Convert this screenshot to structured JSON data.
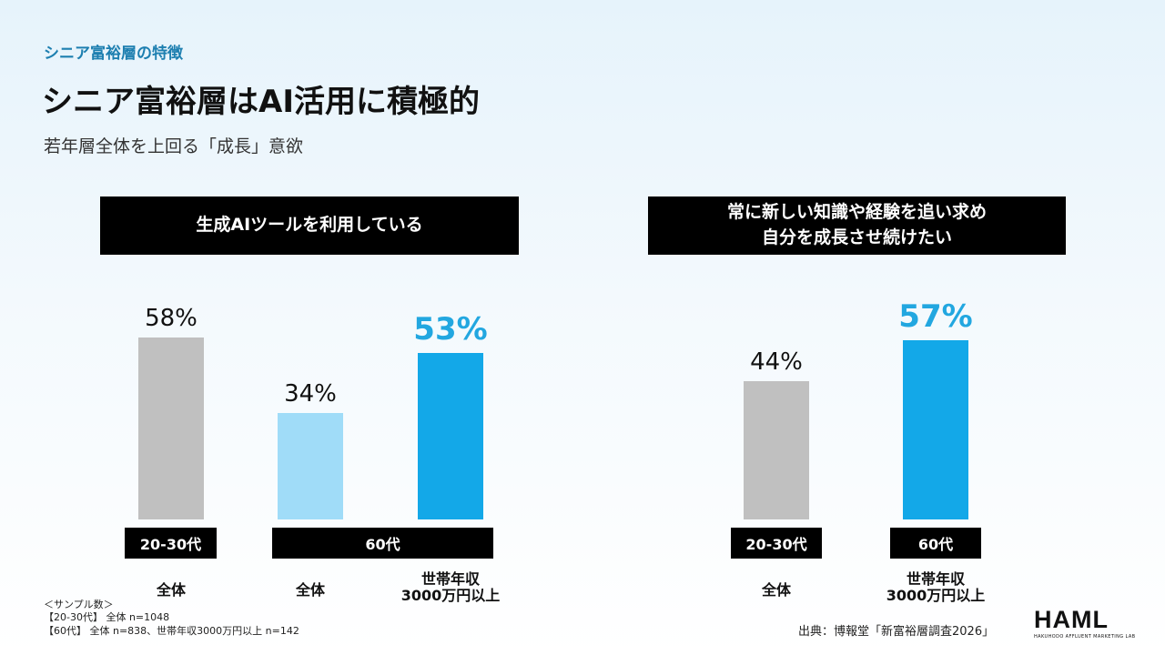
{
  "header": {
    "section_label": "シニア富裕層の特徴",
    "title": "シニア富裕層はAI活用に積極的",
    "subtitle": "若年層全体を上回る「成長」意欲"
  },
  "colors": {
    "gray": "#c0c0c0",
    "light_blue": "#a0dcf8",
    "blue": "#13a8e8",
    "highlight_text": "#22a7e0"
  },
  "chart_data": [
    {
      "type": "bar",
      "title_lines": [
        "生成AIツールを利用している"
      ],
      "categories": [
        "全体",
        "全体",
        "世帯年収\n3000万円以上"
      ],
      "groups": [
        {
          "label": "20-30代",
          "categories": [
            0
          ]
        },
        {
          "label": "60代",
          "categories": [
            1,
            2
          ]
        }
      ],
      "values": [
        58,
        34,
        53
      ],
      "value_labels": [
        "58%",
        "34%",
        "53%"
      ],
      "bar_colors": [
        "#c0c0c0",
        "#a0dcf8",
        "#13a8e8"
      ],
      "highlight": [
        false,
        false,
        true
      ],
      "unit": "%",
      "ylim": [
        0,
        100
      ],
      "grid": false
    },
    {
      "type": "bar",
      "title_lines": [
        "常に新しい知識や経験を追い求め",
        "自分を成長させ続けたい"
      ],
      "categories": [
        "全体",
        "世帯年収\n3000万円以上"
      ],
      "groups": [
        {
          "label": "20-30代",
          "categories": [
            0
          ]
        },
        {
          "label": "60代",
          "categories": [
            1
          ]
        }
      ],
      "values": [
        44,
        57
      ],
      "value_labels": [
        "44%",
        "57%"
      ],
      "bar_colors": [
        "#c0c0c0",
        "#13a8e8"
      ],
      "highlight": [
        false,
        true
      ],
      "unit": "%",
      "ylim": [
        0,
        100
      ],
      "grid": false
    }
  ],
  "sample_note": {
    "heading": "＜サンプル数＞",
    "line1": "【20-30代】 全体 n=1048",
    "line2": "【60代】 全体 n=838、世帯年収3000万円以上 n=142"
  },
  "source": "出典：博報堂「新富裕層調査2026」",
  "logo": {
    "main": "HAML",
    "sub": "HAKUHODO AFFLUENT MARKETING LAB"
  }
}
